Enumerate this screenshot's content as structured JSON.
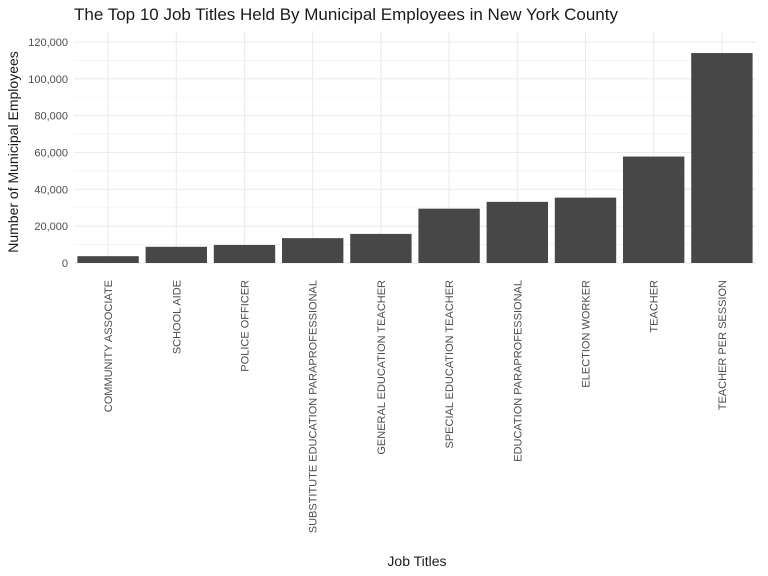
{
  "chart_data": {
    "type": "bar",
    "title": "The Top 10 Job Titles Held By Municipal Employees in New York County",
    "xlabel": "Job Titles",
    "ylabel": "Number of Municipal Employees",
    "categories": [
      "COMMUNITY ASSOCIATE",
      "SCHOOL AIDE",
      "POLICE OFFICER",
      "SUBSTITUTE EDUCATION PARAPROFESSIONAL",
      "GENERAL EDUCATION TEACHER",
      "SPECIAL EDUCATION TEACHER",
      "EDUCATION PARAPROFESSIONAL",
      "ELECTION WORKER",
      "TEACHER",
      "TEACHER PER SESSION"
    ],
    "values": [
      3700,
      8800,
      9800,
      13500,
      15800,
      29500,
      33200,
      35500,
      57800,
      114000
    ],
    "ylim": [
      0,
      120000
    ],
    "yticks": [
      0,
      20000,
      40000,
      60000,
      80000,
      100000,
      120000
    ],
    "ytick_labels": [
      "0",
      "20,000",
      "40,000",
      "60,000",
      "80,000",
      "100,000",
      "120,000"
    ],
    "grid": true,
    "bar_color": "#474747"
  }
}
